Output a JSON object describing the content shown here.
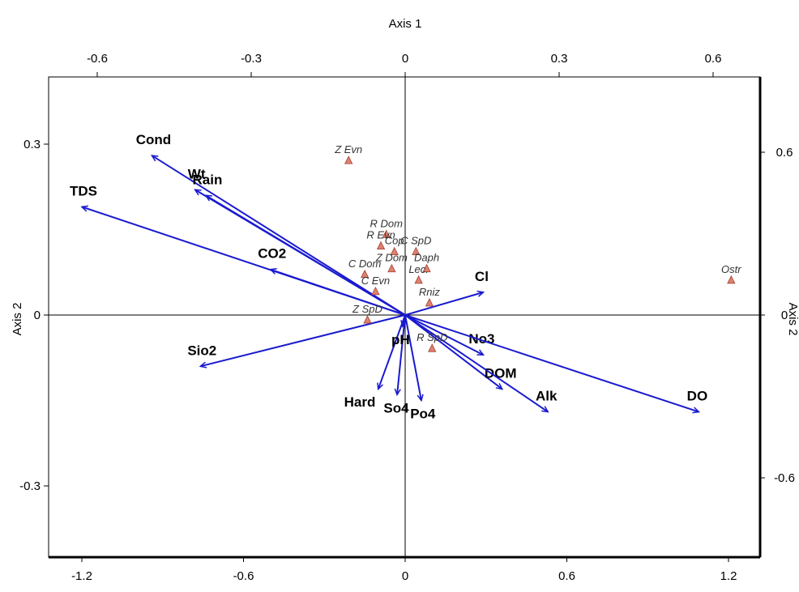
{
  "chart_data": {
    "type": "scatter",
    "subtype": "ordination-biplot",
    "axes": {
      "bottom": {
        "label": "",
        "range": [
          -1.5,
          1.3
        ],
        "ticks": [
          -1.2,
          -0.6,
          0,
          0.6,
          1.2
        ],
        "tick_labels": [
          "-1.2",
          "-0.6",
          "0",
          "0.6",
          "1.2"
        ]
      },
      "top": {
        "label": "Axis 1",
        "range": [
          -0.75,
          0.65
        ],
        "ticks": [
          -0.6,
          -0.3,
          0,
          0.3,
          0.6
        ],
        "tick_labels": [
          "-0.6",
          "-0.3",
          "0",
          "0.3",
          "0.6"
        ]
      },
      "left": {
        "label": "Axis 2",
        "range": [
          -0.4,
          0.4
        ],
        "ticks": [
          -0.3,
          0,
          0.3
        ],
        "tick_labels": [
          "-0.3",
          "0",
          "0.3"
        ]
      },
      "right": {
        "label": "Axis 2",
        "range": [
          -0.8,
          0.8
        ],
        "ticks": [
          -0.6,
          0,
          0.6
        ],
        "tick_labels": [
          "-0.6",
          "0",
          "0.6"
        ]
      }
    },
    "zero_lines": true,
    "vector_color": "#1a1ad0",
    "marker_color": "#e08070",
    "env_vectors": [
      {
        "label": "TDS",
        "x": -1.2,
        "y": 0.19
      },
      {
        "label": "Cond",
        "x": -0.94,
        "y": 0.28
      },
      {
        "label": "Wt",
        "x": -0.78,
        "y": 0.22
      },
      {
        "label": "Rain",
        "x": -0.74,
        "y": 0.21
      },
      {
        "label": "CO2",
        "x": -0.5,
        "y": 0.08
      },
      {
        "label": "Sio2",
        "x": -0.76,
        "y": -0.09
      },
      {
        "label": "Cl",
        "x": 0.29,
        "y": 0.04
      },
      {
        "label": "No3",
        "x": 0.29,
        "y": -0.07
      },
      {
        "label": "DOM",
        "x": 0.36,
        "y": -0.13
      },
      {
        "label": "Alk",
        "x": 0.53,
        "y": -0.17
      },
      {
        "label": "DO",
        "x": 1.09,
        "y": -0.17
      },
      {
        "label": "Hard",
        "x": -0.1,
        "y": -0.13
      },
      {
        "label": "So4",
        "x": -0.03,
        "y": -0.14
      },
      {
        "label": "Po4",
        "x": 0.06,
        "y": -0.15
      },
      {
        "label": "pH",
        "x": -0.01,
        "y": -0.02
      }
    ],
    "species": [
      {
        "label": "Z Evn",
        "x": -0.21,
        "y": 0.27
      },
      {
        "label": "Ostr",
        "x": 1.21,
        "y": 0.06
      },
      {
        "label": "R Dom",
        "x": -0.07,
        "y": 0.14
      },
      {
        "label": "R Evn",
        "x": -0.09,
        "y": 0.12
      },
      {
        "label": "Cop",
        "x": -0.04,
        "y": 0.11
      },
      {
        "label": "C SpD",
        "x": 0.04,
        "y": 0.11
      },
      {
        "label": "Daph",
        "x": 0.08,
        "y": 0.08
      },
      {
        "label": "Z Dom",
        "x": -0.05,
        "y": 0.08
      },
      {
        "label": "C Dom",
        "x": -0.15,
        "y": 0.07
      },
      {
        "label": "Lec.",
        "x": 0.05,
        "y": 0.06
      },
      {
        "label": "C Evn",
        "x": -0.11,
        "y": 0.04
      },
      {
        "label": "R SpD",
        "x": 0.1,
        "y": -0.06
      },
      {
        "label": "Z SpD",
        "x": -0.14,
        "y": -0.01
      },
      {
        "label": "Rniz",
        "x": 0.09,
        "y": 0.02
      }
    ]
  }
}
